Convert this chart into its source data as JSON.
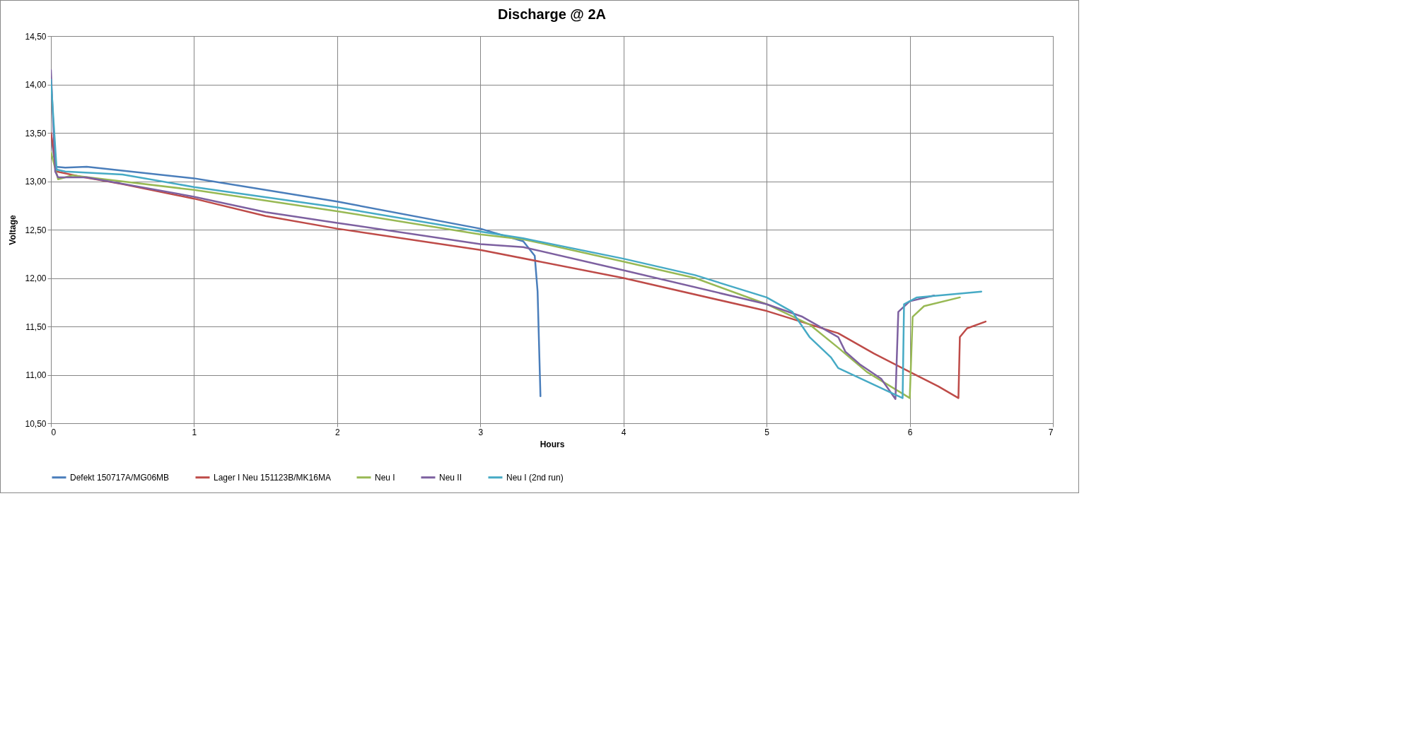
{
  "chart_data": {
    "type": "line",
    "title": "Discharge @ 2A",
    "xlabel": "Hours",
    "ylabel": "Voltage",
    "xlim": [
      0,
      7
    ],
    "xticks": [
      0,
      1,
      2,
      3,
      4,
      5,
      6,
      7
    ],
    "ylim": [
      10.5,
      14.5
    ],
    "yticks": [
      {
        "value": 10.5,
        "label": "10,50"
      },
      {
        "value": 11,
        "label": "11,00"
      },
      {
        "value": 11.5,
        "label": "11,50"
      },
      {
        "value": 12,
        "label": "12,00"
      },
      {
        "value": 12.5,
        "label": "12,50"
      },
      {
        "value": 13,
        "label": "13,00"
      },
      {
        "value": 13.5,
        "label": "13,50"
      },
      {
        "value": 14,
        "label": "14,00"
      },
      {
        "value": 14.5,
        "label": "14,50"
      }
    ],
    "grid": true,
    "legend": "bottom",
    "marker": "none",
    "line_style": "solid",
    "series": [
      {
        "name": "Defekt 150717A/MG06MB",
        "color": "#4a7ebb",
        "x": [
          0,
          0.03,
          0.1,
          0.25,
          1,
          2,
          3,
          3.3,
          3.38,
          3.4,
          3.42
        ],
        "values": [
          13.5,
          13.15,
          13.14,
          13.15,
          13.03,
          12.79,
          12.51,
          12.38,
          12.23,
          11.86,
          10.78
        ]
      },
      {
        "name": "Lager I Neu 151123B/MK16MA",
        "color": "#be4b48",
        "x": [
          0,
          0.04,
          0.2,
          0.5,
          1,
          1.5,
          2,
          3,
          4,
          5,
          5.5,
          5.75,
          6,
          6.2,
          6.34,
          6.35,
          6.4,
          6.53
        ],
        "values": [
          13.5,
          13.1,
          13.05,
          12.97,
          12.82,
          12.64,
          12.51,
          12.29,
          12.0,
          11.66,
          11.43,
          11.22,
          11.03,
          10.88,
          10.76,
          11.39,
          11.48,
          11.55
        ]
      },
      {
        "name": "Neu I",
        "color": "#98b954",
        "x": [
          0,
          0.05,
          0.15,
          1,
          2,
          3,
          3.3,
          4,
          4.5,
          5,
          5.3,
          5.5,
          5.7,
          6.0,
          6.02,
          6.1,
          6.35
        ],
        "values": [
          13.3,
          13.02,
          13.06,
          12.91,
          12.69,
          12.45,
          12.4,
          12.17,
          12.0,
          11.73,
          11.52,
          11.28,
          11.03,
          10.76,
          11.6,
          11.71,
          11.8
        ]
      },
      {
        "name": "Neu II",
        "color": "#7d60a0",
        "x": [
          0,
          0.03,
          0.05,
          0.25,
          1,
          1.5,
          2,
          3,
          3.3,
          4,
          5,
          5.25,
          5.5,
          5.55,
          5.65,
          5.8,
          5.9,
          5.92,
          6.0,
          6.17
        ],
        "values": [
          14.15,
          13.1,
          13.04,
          13.04,
          12.84,
          12.68,
          12.57,
          12.35,
          12.32,
          12.08,
          11.73,
          11.6,
          11.39,
          11.24,
          11.11,
          10.96,
          10.75,
          11.65,
          11.76,
          11.82
        ]
      },
      {
        "name": "Neu I (2nd run)",
        "color": "#46aac5",
        "x": [
          0,
          0.04,
          0.1,
          0.5,
          1,
          2,
          3,
          3.3,
          4,
          4.5,
          5,
          5.18,
          5.3,
          5.45,
          5.5,
          5.95,
          5.96,
          6.05,
          6.5
        ],
        "values": [
          14.05,
          13.12,
          13.1,
          13.07,
          12.94,
          12.73,
          12.48,
          12.41,
          12.2,
          12.03,
          11.8,
          11.65,
          11.39,
          11.18,
          11.07,
          10.76,
          11.73,
          11.8,
          11.86
        ]
      }
    ]
  }
}
